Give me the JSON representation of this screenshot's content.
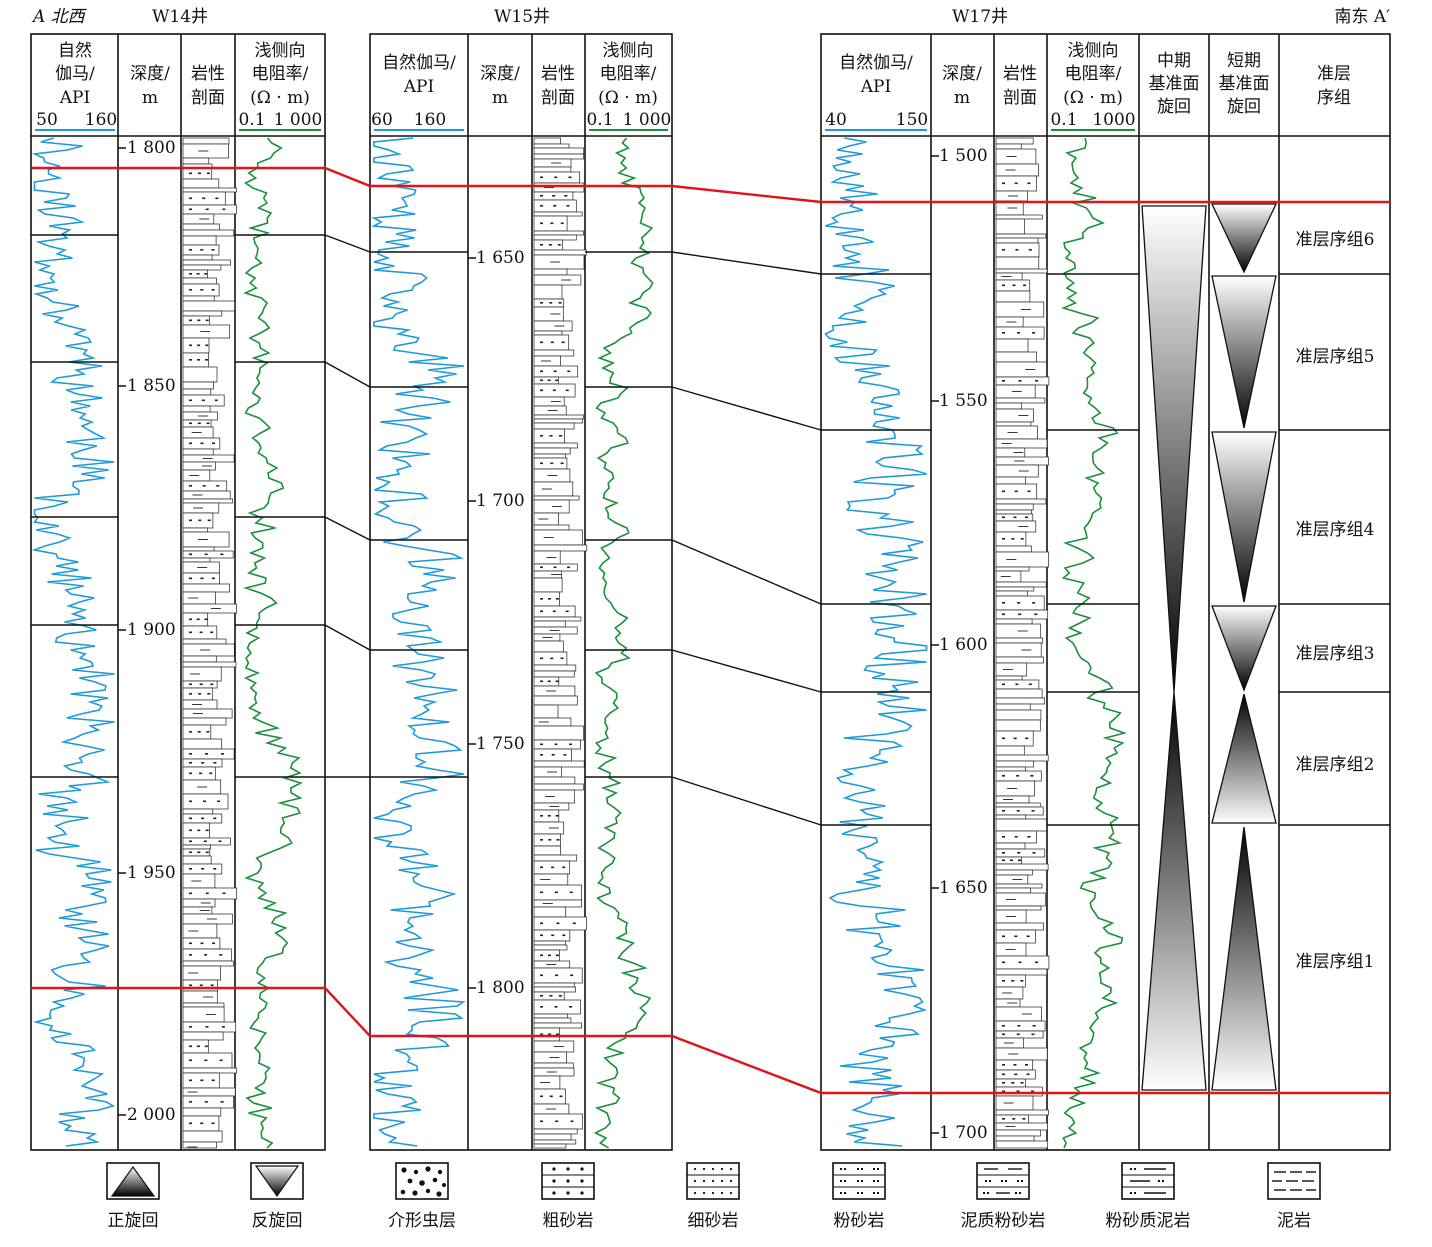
{
  "corner_labels": {
    "left": "A 北西",
    "right": "南东 A′"
  },
  "wells": [
    {
      "name": "W14井",
      "gr_header": [
        "自然",
        "伽马/",
        "API"
      ],
      "gr_scale": [
        "50",
        "160"
      ],
      "depth_header": [
        "深度/",
        "m"
      ],
      "lith_header": [
        "岩性",
        "剖面"
      ],
      "res_header": [
        "浅侧向",
        "电阻率/",
        "(Ω · m)"
      ],
      "res_scale": [
        "0.1",
        "1 000"
      ],
      "depth_ticks": [
        "1 800",
        "1 850",
        "1 900",
        "1 950",
        "2 000"
      ]
    },
    {
      "name": "W15井",
      "gr_header": [
        "自然伽马/",
        "API"
      ],
      "gr_scale": [
        "60",
        "160"
      ],
      "depth_header": [
        "深度/",
        "m"
      ],
      "lith_header": [
        "岩性",
        "剖面"
      ],
      "res_header": [
        "浅侧向",
        "电阻率/",
        "(Ω · m)"
      ],
      "res_scale": [
        "0.1",
        "1 000"
      ],
      "depth_ticks": [
        "1 650",
        "1 700",
        "1 750",
        "1 800"
      ]
    },
    {
      "name": "W17井",
      "gr_header": [
        "自然伽马/",
        "API"
      ],
      "gr_scale": [
        "40",
        "150"
      ],
      "depth_header": [
        "深度/",
        "m"
      ],
      "lith_header": [
        "岩性",
        "剖面"
      ],
      "res_header": [
        "浅侧向",
        "电阻率/",
        "(Ω · m)"
      ],
      "res_scale": [
        "0.1",
        "1000"
      ],
      "depth_ticks": [
        "1 500",
        "1 550",
        "1 600",
        "1 650",
        "1 700"
      ]
    }
  ],
  "cycle_headers": {
    "mid": [
      "中期",
      "基准面",
      "旋回"
    ],
    "short": [
      "短期",
      "基准面",
      "旋回"
    ],
    "group": [
      "准层",
      "序组"
    ]
  },
  "sequence_groups": [
    "准层序组6",
    "准层序组5",
    "准层序组4",
    "准层序组3",
    "准层序组2",
    "准层序组1"
  ],
  "legend": [
    "正旋回",
    "反旋回",
    "介形虫层",
    "粗砂岩",
    "细砂岩",
    "粉砂岩",
    "泥质粉砂岩",
    "粉砂质泥岩",
    "泥岩"
  ],
  "colors": {
    "gr": "#1e9ad6",
    "res": "#1a8f3c",
    "boundary": "#e0141e"
  }
}
